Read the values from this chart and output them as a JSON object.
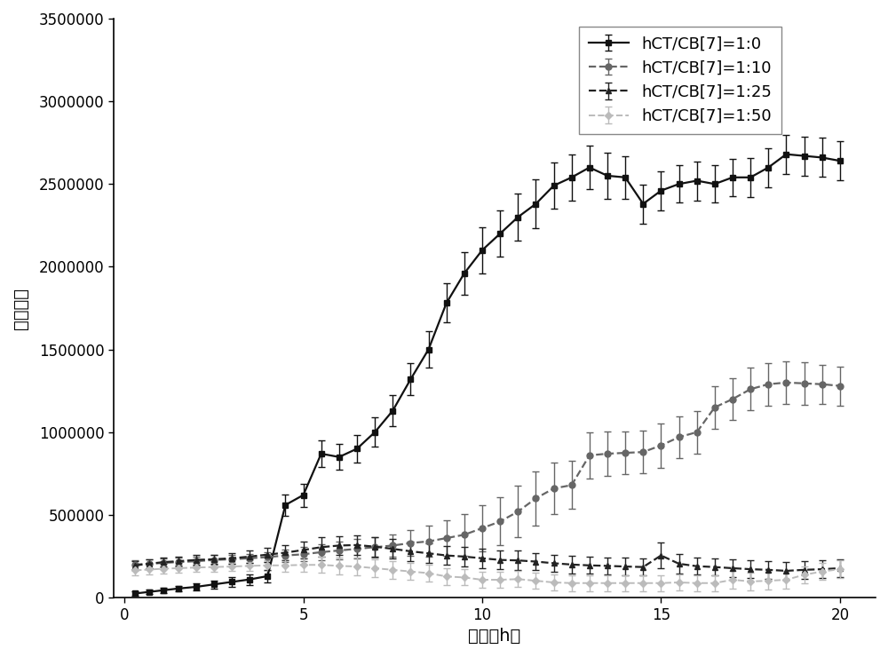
{
  "title": "",
  "xlabel": "时间（h）",
  "ylabel": "荧光强度",
  "xlim": [
    -0.3,
    21
  ],
  "ylim": [
    0,
    3500000
  ],
  "xticks": [
    0,
    5,
    10,
    15,
    20
  ],
  "yticks": [
    0,
    500000,
    1000000,
    1500000,
    2000000,
    2500000,
    3000000,
    3500000
  ],
  "series": [
    {
      "label": "hCT/CB[7]=1:0",
      "color": "#111111",
      "linestyle": "-",
      "marker": "s",
      "markersize": 5,
      "linewidth": 1.6,
      "x": [
        0.3,
        0.7,
        1.1,
        1.5,
        2.0,
        2.5,
        3.0,
        3.5,
        4.0,
        4.5,
        5.0,
        5.5,
        6.0,
        6.5,
        7.0,
        7.5,
        8.0,
        8.5,
        9.0,
        9.5,
        10.0,
        10.5,
        11.0,
        11.5,
        12.0,
        12.5,
        13.0,
        13.5,
        14.0,
        14.5,
        15.0,
        15.5,
        16.0,
        16.5,
        17.0,
        17.5,
        18.0,
        18.5,
        19.0,
        19.5,
        20.0
      ],
      "y": [
        25000,
        35000,
        45000,
        55000,
        65000,
        80000,
        95000,
        110000,
        130000,
        560000,
        620000,
        870000,
        850000,
        900000,
        1000000,
        1130000,
        1320000,
        1500000,
        1780000,
        1960000,
        2100000,
        2200000,
        2300000,
        2380000,
        2490000,
        2540000,
        2600000,
        2550000,
        2540000,
        2380000,
        2460000,
        2500000,
        2520000,
        2500000,
        2540000,
        2540000,
        2600000,
        2680000,
        2670000,
        2660000,
        2640000
      ],
      "yerr": [
        15000,
        15000,
        15000,
        15000,
        20000,
        25000,
        28000,
        32000,
        38000,
        65000,
        70000,
        78000,
        78000,
        82000,
        88000,
        92000,
        98000,
        108000,
        118000,
        128000,
        138000,
        138000,
        142000,
        148000,
        138000,
        138000,
        132000,
        138000,
        128000,
        118000,
        118000,
        112000,
        118000,
        112000,
        112000,
        118000,
        118000,
        118000,
        118000,
        118000,
        118000
      ]
    },
    {
      "label": "hCT/CB[7]=1:10",
      "color": "#666666",
      "linestyle": "--",
      "marker": "o",
      "markersize": 5,
      "linewidth": 1.6,
      "x": [
        0.3,
        0.7,
        1.1,
        1.5,
        2.0,
        2.5,
        3.0,
        3.5,
        4.0,
        4.5,
        5.0,
        5.5,
        6.0,
        6.5,
        7.0,
        7.5,
        8.0,
        8.5,
        9.0,
        9.5,
        10.0,
        10.5,
        11.0,
        11.5,
        12.0,
        12.5,
        13.0,
        13.5,
        14.0,
        14.5,
        15.0,
        15.5,
        16.0,
        16.5,
        17.0,
        17.5,
        18.0,
        18.5,
        19.0,
        19.5,
        20.0
      ],
      "y": [
        200000,
        205000,
        210000,
        215000,
        220000,
        228000,
        232000,
        238000,
        245000,
        255000,
        262000,
        275000,
        285000,
        295000,
        305000,
        315000,
        330000,
        340000,
        360000,
        380000,
        420000,
        460000,
        520000,
        600000,
        660000,
        680000,
        860000,
        870000,
        875000,
        880000,
        920000,
        970000,
        1000000,
        1150000,
        1200000,
        1260000,
        1290000,
        1300000,
        1295000,
        1290000,
        1280000
      ],
      "yerr": [
        28000,
        28000,
        28000,
        28000,
        28000,
        28000,
        28000,
        28000,
        32000,
        38000,
        42000,
        48000,
        52000,
        58000,
        62000,
        68000,
        78000,
        95000,
        108000,
        125000,
        138000,
        145000,
        155000,
        165000,
        155000,
        145000,
        138000,
        135000,
        128000,
        128000,
        135000,
        128000,
        128000,
        128000,
        128000,
        128000,
        128000,
        128000,
        128000,
        118000,
        118000
      ]
    },
    {
      "label": "hCT/CB[7]=1:25",
      "color": "#222222",
      "linestyle": "--",
      "marker": "^",
      "markersize": 5,
      "linewidth": 1.6,
      "x": [
        0.3,
        0.7,
        1.1,
        1.5,
        2.0,
        2.5,
        3.0,
        3.5,
        4.0,
        4.5,
        5.0,
        5.5,
        6.0,
        6.5,
        7.0,
        7.5,
        8.0,
        8.5,
        9.0,
        9.5,
        10.0,
        10.5,
        11.0,
        11.5,
        12.0,
        12.5,
        13.0,
        13.5,
        14.0,
        14.5,
        15.0,
        15.5,
        16.0,
        16.5,
        17.0,
        17.5,
        18.0,
        18.5,
        19.0,
        19.5,
        20.0
      ],
      "y": [
        195000,
        205000,
        215000,
        220000,
        228000,
        232000,
        238000,
        248000,
        260000,
        272000,
        288000,
        305000,
        315000,
        318000,
        308000,
        295000,
        280000,
        268000,
        255000,
        248000,
        238000,
        228000,
        225000,
        218000,
        208000,
        200000,
        195000,
        192000,
        188000,
        185000,
        255000,
        205000,
        190000,
        185000,
        178000,
        172000,
        168000,
        162000,
        168000,
        172000,
        178000
      ],
      "yerr": [
        28000,
        28000,
        28000,
        28000,
        28000,
        28000,
        32000,
        38000,
        42000,
        48000,
        52000,
        58000,
        58000,
        58000,
        58000,
        58000,
        58000,
        58000,
        58000,
        58000,
        58000,
        58000,
        58000,
        52000,
        52000,
        52000,
        52000,
        52000,
        52000,
        52000,
        78000,
        58000,
        52000,
        52000,
        52000,
        52000,
        52000,
        52000,
        52000,
        52000,
        52000
      ]
    },
    {
      "label": "hCT/CB[7]=1:50",
      "color": "#bbbbbb",
      "linestyle": "--",
      "marker": "D",
      "markersize": 4,
      "linewidth": 1.4,
      "x": [
        0.3,
        0.7,
        1.1,
        1.5,
        2.0,
        2.5,
        3.0,
        3.5,
        4.0,
        4.5,
        5.0,
        5.5,
        6.0,
        6.5,
        7.0,
        7.5,
        8.0,
        8.5,
        9.0,
        9.5,
        10.0,
        10.5,
        11.0,
        11.5,
        12.0,
        12.5,
        13.0,
        13.5,
        14.0,
        14.5,
        15.0,
        15.5,
        16.0,
        16.5,
        17.0,
        17.5,
        18.0,
        18.5,
        19.0,
        19.5,
        20.0
      ],
      "y": [
        165000,
        170000,
        175000,
        178000,
        182000,
        185000,
        188000,
        192000,
        195000,
        195000,
        198000,
        198000,
        192000,
        188000,
        178000,
        168000,
        158000,
        148000,
        128000,
        122000,
        108000,
        108000,
        112000,
        102000,
        92000,
        88000,
        88000,
        88000,
        88000,
        88000,
        88000,
        92000,
        88000,
        88000,
        108000,
        98000,
        102000,
        108000,
        138000,
        158000,
        172000
      ],
      "yerr": [
        28000,
        28000,
        28000,
        28000,
        28000,
        28000,
        28000,
        32000,
        32000,
        38000,
        42000,
        48000,
        52000,
        52000,
        52000,
        52000,
        52000,
        52000,
        52000,
        48000,
        48000,
        48000,
        48000,
        48000,
        48000,
        48000,
        48000,
        48000,
        48000,
        48000,
        48000,
        48000,
        48000,
        48000,
        52000,
        52000,
        52000,
        52000,
        52000,
        52000,
        52000
      ]
    }
  ],
  "legend_fontsize": 13,
  "axis_fontsize": 14,
  "tick_fontsize": 12,
  "background_color": "#ffffff",
  "capsize": 3,
  "elinewidth": 1.0
}
